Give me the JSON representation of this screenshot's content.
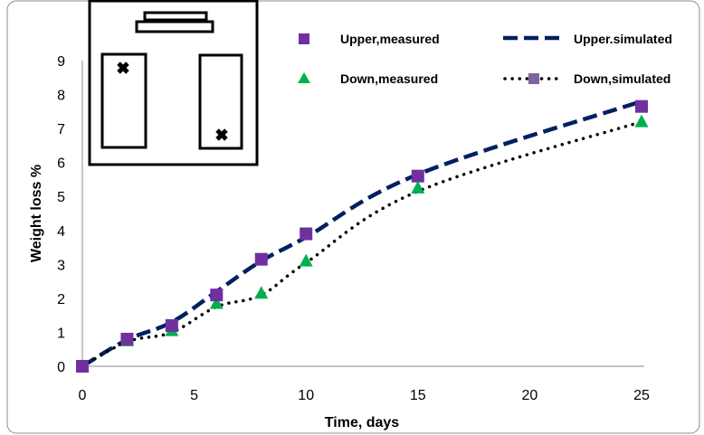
{
  "chart_data": {
    "type": "line",
    "xlabel": "Time, days",
    "ylabel": "Weight loss %",
    "xlim": [
      0,
      25
    ],
    "ylim": [
      0,
      9
    ],
    "x_ticks": [
      "0",
      "5",
      "10",
      "15",
      "20",
      "25"
    ],
    "y_ticks": [
      "0",
      "1",
      "2",
      "3",
      "4",
      "5",
      "6",
      "7",
      "8",
      "9"
    ],
    "grid": false,
    "legend_position": "top-right",
    "series": [
      {
        "name": "Upper,measured",
        "style": "square-markers",
        "color": "#7030A0",
        "x": [
          0,
          2,
          4,
          6,
          8,
          10,
          15,
          25
        ],
        "y": [
          0,
          0.8,
          1.2,
          2.1,
          3.15,
          3.9,
          5.6,
          7.65
        ]
      },
      {
        "name": "Upper.simulated",
        "style": "dashed-line",
        "color": "#002060",
        "x": [
          0,
          2,
          4,
          6,
          8,
          10,
          15,
          25
        ],
        "y": [
          0,
          0.78,
          1.3,
          2.2,
          3.1,
          3.8,
          5.65,
          7.8
        ]
      },
      {
        "name": "Down,measured",
        "style": "triangle-markers",
        "color": "#00B050",
        "x": [
          0,
          2,
          4,
          6,
          8,
          10,
          15,
          25
        ],
        "y": [
          0,
          0.75,
          1.05,
          1.85,
          2.15,
          3.1,
          5.25,
          7.2
        ]
      },
      {
        "name": "Down,simulated",
        "style": "dotted-line",
        "color": "#000000",
        "legend_marker_color": "#8064A2",
        "x": [
          0,
          2,
          4,
          6,
          8,
          10,
          15,
          25
        ],
        "y": [
          0,
          0.72,
          1.0,
          1.75,
          2.1,
          3.05,
          5.15,
          7.2
        ]
      }
    ]
  }
}
